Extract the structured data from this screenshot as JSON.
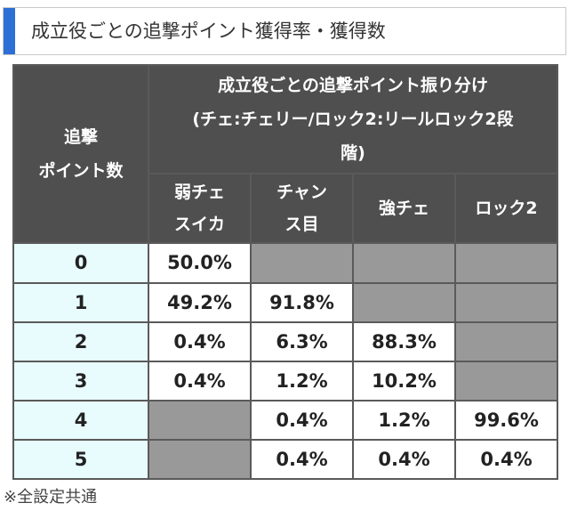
{
  "heading": {
    "title": "成立役ごとの追撃ポイント獲得率・獲得数"
  },
  "table": {
    "corner_label_line1": "追撃",
    "corner_label_line2": "ポイント数",
    "group_header_line1": "成立役ごとの追撃ポイント振り分け",
    "group_header_line2": "(チェ:チェリー/ロック2:リールロック2段",
    "group_header_line3": "階)",
    "columns": [
      {
        "line1": "弱チェ",
        "line2": "スイカ"
      },
      {
        "line1": "チャン",
        "line2": "ス目"
      },
      {
        "line1": "強チェ",
        "line2": ""
      },
      {
        "line1": "ロック2",
        "line2": ""
      }
    ],
    "rows": [
      {
        "points": "0",
        "cells": [
          "50.0%",
          "",
          "",
          ""
        ]
      },
      {
        "points": "1",
        "cells": [
          "49.2%",
          "91.8%",
          "",
          ""
        ]
      },
      {
        "points": "2",
        "cells": [
          "0.4%",
          "6.3%",
          "88.3%",
          ""
        ]
      },
      {
        "points": "3",
        "cells": [
          "0.4%",
          "1.2%",
          "10.2%",
          ""
        ]
      },
      {
        "points": "4",
        "cells": [
          "",
          "0.4%",
          "1.2%",
          "99.6%"
        ]
      },
      {
        "points": "5",
        "cells": [
          "",
          "0.4%",
          "0.4%",
          "0.4%"
        ]
      }
    ]
  },
  "footnote": "※全設定共通",
  "colors": {
    "accent_bar": "#2e6fd6",
    "header_bg": "#4f4f4f",
    "row_header_bg": "#e8fbfd",
    "unavailable_cell": "#999999"
  }
}
